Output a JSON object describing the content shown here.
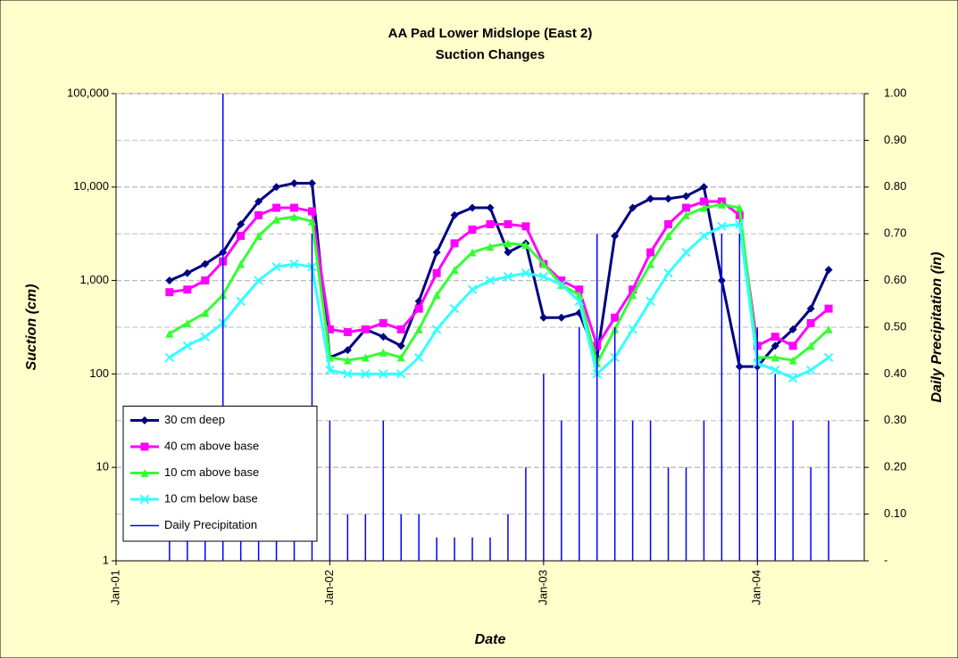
{
  "chart_data": {
    "type": "line",
    "title": "AA Pad Lower Midslope (East 2)",
    "subtitle": "Suction Changes",
    "x_label": "Date",
    "y_label": "Suction (cm)",
    "y2_label": "Daily Precipitation (in)",
    "x": [
      "2001-04",
      "2001-05",
      "2001-06",
      "2001-07",
      "2001-08",
      "2001-09",
      "2001-10",
      "2001-11",
      "2001-12",
      "2002-01",
      "2002-02",
      "2002-03",
      "2002-04",
      "2002-05",
      "2002-06",
      "2002-07",
      "2002-08",
      "2002-09",
      "2002-10",
      "2002-11",
      "2002-12",
      "2003-01",
      "2003-02",
      "2003-03",
      "2003-04",
      "2003-05",
      "2003-06",
      "2003-07",
      "2003-08",
      "2003-09",
      "2003-10",
      "2003-11",
      "2003-12",
      "2004-01",
      "2004-02",
      "2004-03",
      "2004-04",
      "2004-05"
    ],
    "xlim": [
      "2001-01",
      "2004-07"
    ],
    "xticks": [
      {
        "value": "2001-01",
        "label": "Jan-01"
      },
      {
        "value": "2002-01",
        "label": "Jan-02"
      },
      {
        "value": "2003-01",
        "label": "Jan-03"
      },
      {
        "value": "2004-01",
        "label": "Jan-04"
      }
    ],
    "ylim": [
      1,
      100000
    ],
    "yticks": [
      1,
      10,
      100,
      {
        "value": 1000,
        "label": "1,000"
      },
      {
        "value": 10000,
        "label": "10,000"
      },
      {
        "value": 100000,
        "label": "100,000"
      }
    ],
    "log_y": true,
    "y2lim": [
      0,
      1
    ],
    "y2ticks": [
      {
        "value": 0,
        "label": "-"
      },
      {
        "value": 0.1,
        "label": "0.10"
      },
      {
        "value": 0.2,
        "label": "0.20"
      },
      {
        "value": 0.3,
        "label": "0.30"
      },
      {
        "value": 0.4,
        "label": "0.40"
      },
      {
        "value": 0.5,
        "label": "0.50"
      },
      {
        "value": 0.6,
        "label": "0.60"
      },
      {
        "value": 0.7,
        "label": "0.70"
      },
      {
        "value": 0.8,
        "label": "0.80"
      },
      {
        "value": 0.9,
        "label": "0.90"
      },
      {
        "value": 1,
        "label": "1.00"
      }
    ],
    "grid": true,
    "legend": "lower left",
    "series": [
      {
        "name": "30 cm deep",
        "color": "#000080",
        "marker": "diamond",
        "values": [
          1000,
          1200,
          1500,
          2000,
          4000,
          7000,
          10000,
          11000,
          11000,
          150,
          180,
          300,
          250,
          200,
          600,
          2000,
          5000,
          6000,
          6000,
          2000,
          2500,
          400,
          400,
          450,
          150,
          3000,
          6000,
          7500,
          7500,
          8000,
          10000,
          1000,
          120,
          120,
          200,
          300,
          500,
          1300
        ]
      },
      {
        "name": "40 cm above base",
        "color": "#ff00ff",
        "marker": "square",
        "values": [
          750,
          800,
          1000,
          1600,
          3000,
          5000,
          6000,
          6000,
          5500,
          300,
          280,
          300,
          350,
          300,
          500,
          1200,
          2500,
          3500,
          4000,
          4000,
          3800,
          1500,
          1000,
          800,
          200,
          400,
          800,
          2000,
          4000,
          6000,
          7000,
          7000,
          5000,
          200,
          250,
          200,
          350,
          500
        ]
      },
      {
        "name": "10 cm above base",
        "color": "#33ff33",
        "marker": "triangle",
        "values": [
          270,
          350,
          450,
          700,
          1500,
          3000,
          4500,
          4800,
          4300,
          150,
          140,
          150,
          170,
          150,
          300,
          700,
          1300,
          2000,
          2300,
          2500,
          2400,
          1500,
          900,
          700,
          130,
          300,
          700,
          1500,
          3000,
          5000,
          6000,
          6500,
          6000,
          150,
          150,
          140,
          200,
          300
        ]
      },
      {
        "name": "10 cm below base",
        "color": "#33ffff",
        "marker": "x",
        "values": [
          150,
          200,
          250,
          350,
          600,
          1000,
          1400,
          1500,
          1400,
          110,
          100,
          100,
          100,
          100,
          150,
          300,
          500,
          800,
          1000,
          1100,
          1200,
          1100,
          900,
          600,
          100,
          150,
          300,
          600,
          1200,
          2000,
          3000,
          3800,
          4000,
          130,
          110,
          90,
          110,
          150
        ]
      },
      {
        "name": "Daily Precipitation",
        "color": "#0000ff",
        "marker": "spike",
        "axis": "y2",
        "values": [
          0.2,
          0.1,
          0.1,
          1.0,
          0.05,
          0.05,
          0.1,
          0.1,
          0.7,
          0.3,
          0.1,
          0.1,
          0.3,
          0.1,
          0.1,
          0.05,
          0.05,
          0.05,
          0.05,
          0.1,
          0.2,
          0.4,
          0.3,
          0.5,
          0.7,
          0.5,
          0.3,
          0.3,
          0.2,
          0.2,
          0.3,
          0.7,
          0.7,
          0.5,
          0.4,
          0.3,
          0.2,
          0.3
        ]
      }
    ]
  }
}
